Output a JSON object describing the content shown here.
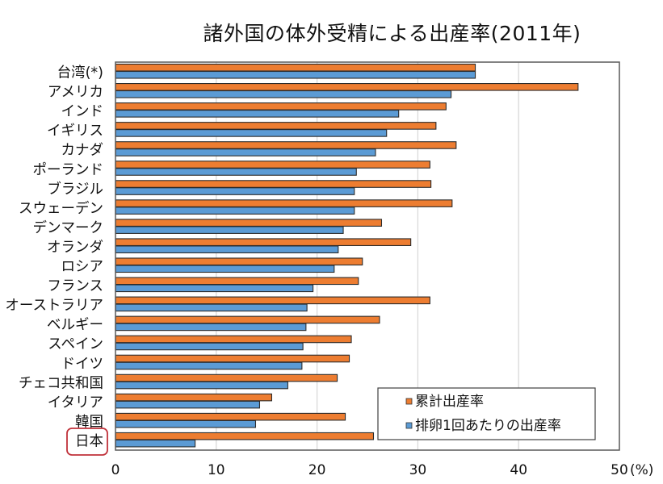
{
  "chart_data": {
    "type": "bar",
    "orientation": "horizontal",
    "title": "諸外国の体外受精による出産率(2011年)",
    "xlabel": "",
    "ylabel": "",
    "unit_label": "(%)",
    "xlim": [
      0,
      50
    ],
    "xticks": [
      "0",
      "10",
      "20",
      "30",
      "40",
      "50"
    ],
    "grid": true,
    "legend_position": "bottom-right",
    "highlighted_category": "日本",
    "categories": [
      "台湾(*)",
      "アメリカ",
      "インド",
      "イギリス",
      "カナダ",
      "ポーランド",
      "ブラジル",
      "スウェーデン",
      "デンマーク",
      "オランダ",
      "ロシア",
      "フランス",
      "オーストラリア",
      "ベルギー",
      "スペイン",
      "ドイツ",
      "チェコ共和国",
      "イタリア",
      "韓国",
      "日本"
    ],
    "series": [
      {
        "name": "累計出産率",
        "color": "#ED7D31",
        "values": [
          35.7,
          45.9,
          32.8,
          31.8,
          33.8,
          31.2,
          31.3,
          33.4,
          26.4,
          29.3,
          24.5,
          24.1,
          31.2,
          26.2,
          23.4,
          23.2,
          22.0,
          15.5,
          22.8,
          25.6
        ]
      },
      {
        "name": "排卵1回あたりの出産率",
        "color": "#5B9BD5",
        "values": [
          35.7,
          33.3,
          28.1,
          26.9,
          25.8,
          23.9,
          23.7,
          23.7,
          22.6,
          22.1,
          21.7,
          19.6,
          19.0,
          18.9,
          18.6,
          18.5,
          17.1,
          14.3,
          13.9,
          7.9
        ]
      }
    ]
  },
  "colors": {
    "highlight_box": "#C0313A",
    "grid": "#D9D9D9",
    "axis": "#595959"
  }
}
